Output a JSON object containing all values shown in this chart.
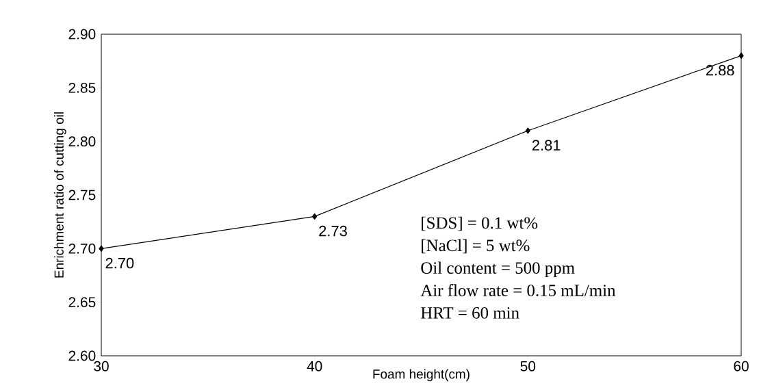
{
  "chart_data": {
    "type": "line",
    "xlabel": "Foam height(cm)",
    "ylabel": "Enrichment ratio of cutting oil",
    "x": [
      30,
      40,
      50,
      60
    ],
    "series": [
      {
        "color": "#000000",
        "values": [
          2.7,
          2.73,
          2.81,
          2.88
        ],
        "value_labels": [
          "2.70",
          "2.73",
          "2.81",
          "2.88"
        ]
      }
    ],
    "xlim": [
      30,
      60
    ],
    "xticks": [
      30,
      40,
      50,
      60
    ],
    "ylim": [
      2.6,
      2.9
    ],
    "yticks": [
      {
        "value": 2.6,
        "label": "2.60"
      },
      {
        "value": 2.65,
        "label": "2.65"
      },
      {
        "value": 2.7,
        "label": "2.70"
      },
      {
        "value": 2.75,
        "label": "2.75"
      },
      {
        "value": 2.8,
        "label": "2.80"
      },
      {
        "value": 2.85,
        "label": "2.85"
      },
      {
        "value": 2.9,
        "label": "2.90"
      }
    ],
    "marker": "diamond",
    "line_style": "solid",
    "annotations": [
      "[SDS] = 0.1 wt%",
      "[NaCl] = 5 wt%",
      "Oil content = 500 ppm",
      "Air flow rate = 0.15 mL/min",
      "HRT = 60 min"
    ]
  }
}
